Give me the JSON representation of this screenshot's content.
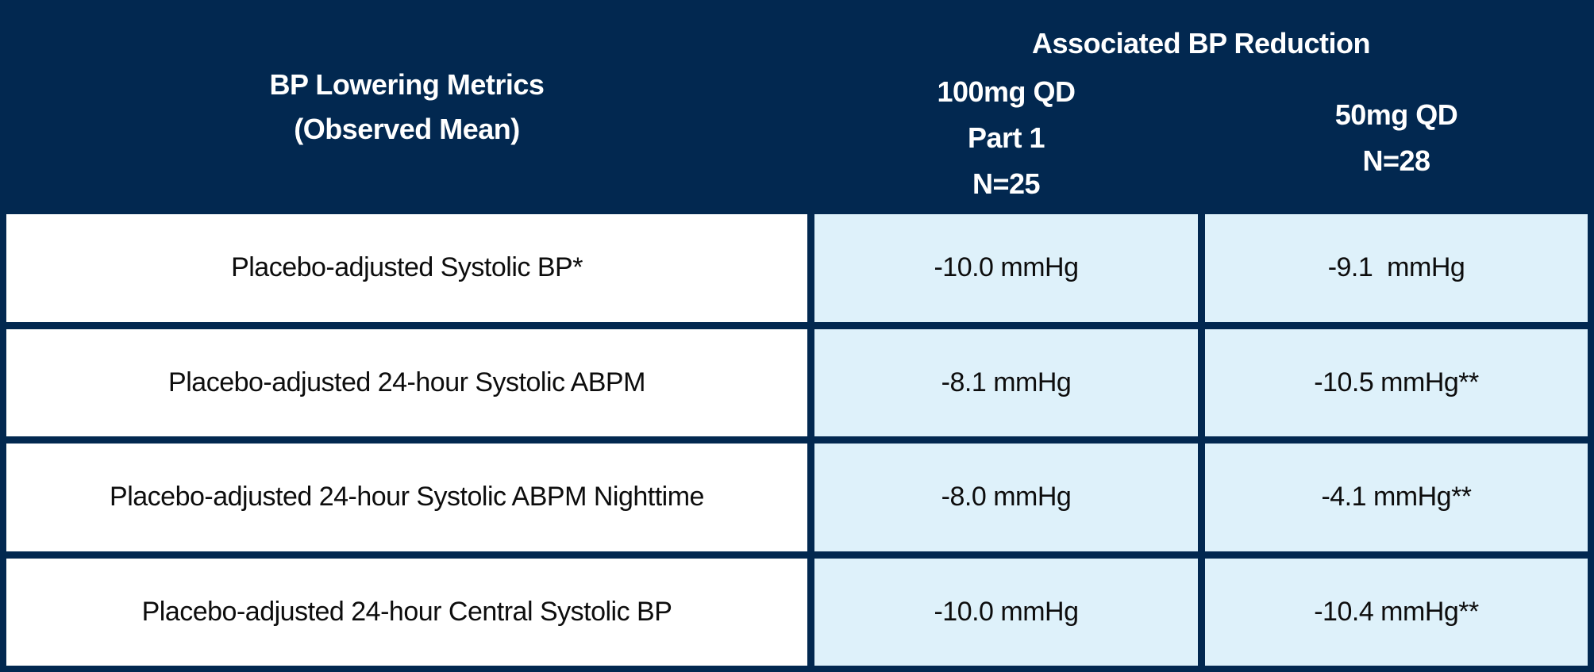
{
  "colors": {
    "navy": "#022850",
    "light_blue": "#def1fa",
    "white": "#ffffff",
    "text_dark": "#0d0d0d"
  },
  "table": {
    "corner_header": "BP Lowering Metrics\n(Observed Mean)",
    "group_header": "Associated BP Reduction",
    "col_headers": [
      "100mg QD\nPart 1\nN=25",
      "50mg QD\nN=28"
    ],
    "rows": [
      {
        "metric": "Placebo-adjusted Systolic BP*",
        "dose_100mg": "-10.0 mmHg",
        "dose_50mg": "-9.1  mmHg"
      },
      {
        "metric": "Placebo-adjusted 24-hour Systolic ABPM",
        "dose_100mg": "-8.1 mmHg",
        "dose_50mg": "-10.5 mmHg**"
      },
      {
        "metric": "Placebo-adjusted 24-hour Systolic ABPM Nighttime",
        "dose_100mg": "-8.0 mmHg",
        "dose_50mg": "-4.1 mmHg**"
      },
      {
        "metric": "Placebo-adjusted 24-hour Central Systolic BP",
        "dose_100mg": "-10.0 mmHg",
        "dose_50mg": "-10.4 mmHg**"
      }
    ]
  }
}
